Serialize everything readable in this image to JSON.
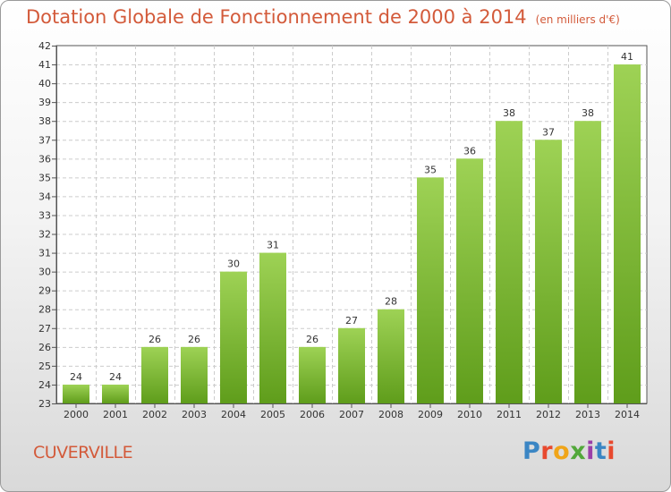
{
  "chart_data": {
    "type": "bar",
    "title": "Dotation Globale de Fonctionnement de 2000 à 2014",
    "unit_label": "(en milliers d'€)",
    "categories": [
      "2000",
      "2001",
      "2002",
      "2003",
      "2004",
      "2005",
      "2006",
      "2007",
      "2008",
      "2009",
      "2010",
      "2011",
      "2012",
      "2013",
      "2014"
    ],
    "values": [
      24,
      24,
      26,
      26,
      30,
      31,
      26,
      27,
      28,
      35,
      36,
      38,
      37,
      38,
      41
    ],
    "ylim": [
      23,
      42
    ],
    "yticks": [
      23,
      24,
      25,
      26,
      27,
      28,
      29,
      30,
      31,
      32,
      33,
      34,
      35,
      36,
      37,
      38,
      39,
      40,
      41,
      42
    ],
    "xlabel": "",
    "ylabel": "",
    "grid": true,
    "bar_color_top": "#9ed255",
    "bar_color_bottom": "#5f9d1b"
  },
  "commune": "CUVERVILLE",
  "logo": [
    "P",
    "r",
    "o",
    "x",
    "i",
    "t",
    "i"
  ]
}
